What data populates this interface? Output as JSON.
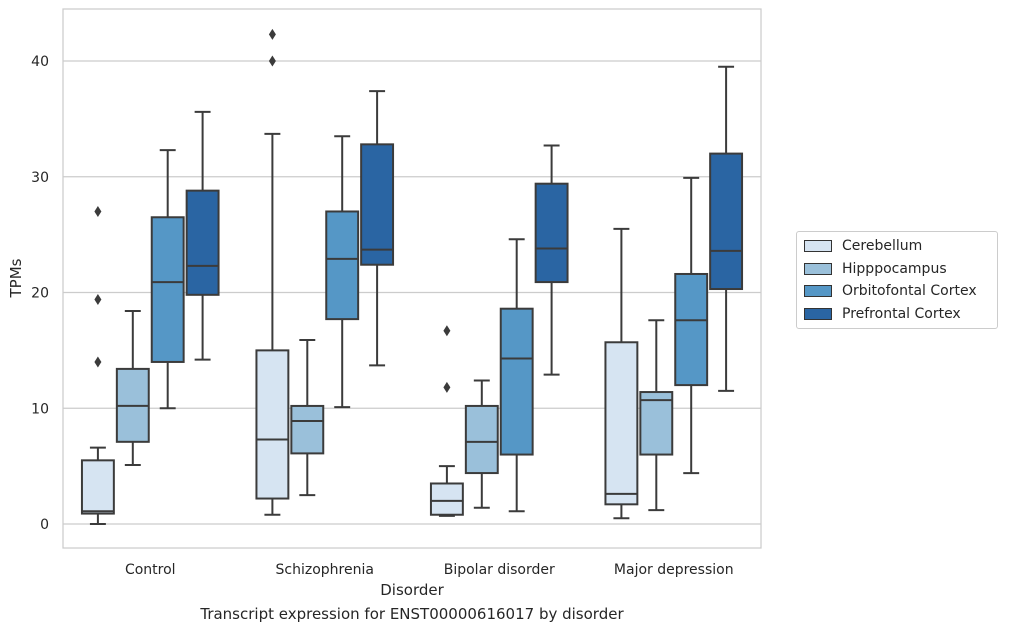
{
  "chart_data": {
    "type": "box",
    "title": "",
    "caption": "Transcript expression for ENST00000616017 by disorder",
    "xlabel": "Disorder",
    "ylabel": "TPMs",
    "ylim": [
      -2,
      44.5
    ],
    "yticks": [
      0,
      10,
      20,
      30,
      40
    ],
    "grid": "y",
    "legend_position": "right",
    "categories": [
      "Control",
      "Schizophrenia",
      "Bipolar disorder",
      "Major depression"
    ],
    "series": [
      {
        "name": "Cerebellum",
        "color": "#d6e4f2",
        "boxes": [
          {
            "whislo": 0.0,
            "q1": 0.9,
            "med": 1.1,
            "q3": 5.5,
            "whishi": 6.6,
            "fliers": [
              14.0,
              19.4,
              27.0
            ]
          },
          {
            "whislo": 0.8,
            "q1": 2.2,
            "med": 7.3,
            "q3": 15.0,
            "whishi": 33.7,
            "fliers": [
              40.0,
              42.3
            ]
          },
          {
            "whislo": 0.7,
            "q1": 0.8,
            "med": 2.0,
            "q3": 3.5,
            "whishi": 5.0,
            "fliers": [
              11.8,
              16.7
            ]
          },
          {
            "whislo": 0.5,
            "q1": 1.7,
            "med": 2.6,
            "q3": 15.7,
            "whishi": 25.5,
            "fliers": []
          }
        ]
      },
      {
        "name": "Hipppocampus",
        "color": "#9ac0da",
        "boxes": [
          {
            "whislo": 5.1,
            "q1": 7.1,
            "med": 10.2,
            "q3": 13.4,
            "whishi": 18.4,
            "fliers": []
          },
          {
            "whislo": 2.5,
            "q1": 6.1,
            "med": 8.9,
            "q3": 10.2,
            "whishi": 15.9,
            "fliers": []
          },
          {
            "whislo": 1.4,
            "q1": 4.4,
            "med": 7.1,
            "q3": 10.2,
            "whishi": 12.4,
            "fliers": []
          },
          {
            "whislo": 1.2,
            "q1": 6.0,
            "med": 10.7,
            "q3": 11.4,
            "whishi": 17.6,
            "fliers": []
          }
        ]
      },
      {
        "name": "Orbitofontal Cortex",
        "color": "#5597c6",
        "boxes": [
          {
            "whislo": 10.0,
            "q1": 14.0,
            "med": 20.9,
            "q3": 26.5,
            "whishi": 32.3,
            "fliers": []
          },
          {
            "whislo": 10.1,
            "q1": 17.7,
            "med": 22.9,
            "q3": 27.0,
            "whishi": 33.5,
            "fliers": []
          },
          {
            "whislo": 1.1,
            "q1": 6.0,
            "med": 14.3,
            "q3": 18.6,
            "whishi": 24.6,
            "fliers": []
          },
          {
            "whislo": 4.4,
            "q1": 12.0,
            "med": 17.6,
            "q3": 21.6,
            "whishi": 29.9,
            "fliers": []
          }
        ]
      },
      {
        "name": "Prefrontal Cortex",
        "color": "#2a65a3",
        "boxes": [
          {
            "whislo": 14.2,
            "q1": 19.8,
            "med": 22.3,
            "q3": 28.8,
            "whishi": 35.6,
            "fliers": []
          },
          {
            "whislo": 13.7,
            "q1": 22.4,
            "med": 23.7,
            "q3": 32.8,
            "whishi": 37.4,
            "fliers": []
          },
          {
            "whislo": 12.9,
            "q1": 20.9,
            "med": 23.8,
            "q3": 29.4,
            "whishi": 32.7,
            "fliers": []
          },
          {
            "whislo": 11.5,
            "q1": 20.3,
            "med": 23.6,
            "q3": 32.0,
            "whishi": 39.5,
            "fliers": []
          }
        ]
      }
    ]
  }
}
